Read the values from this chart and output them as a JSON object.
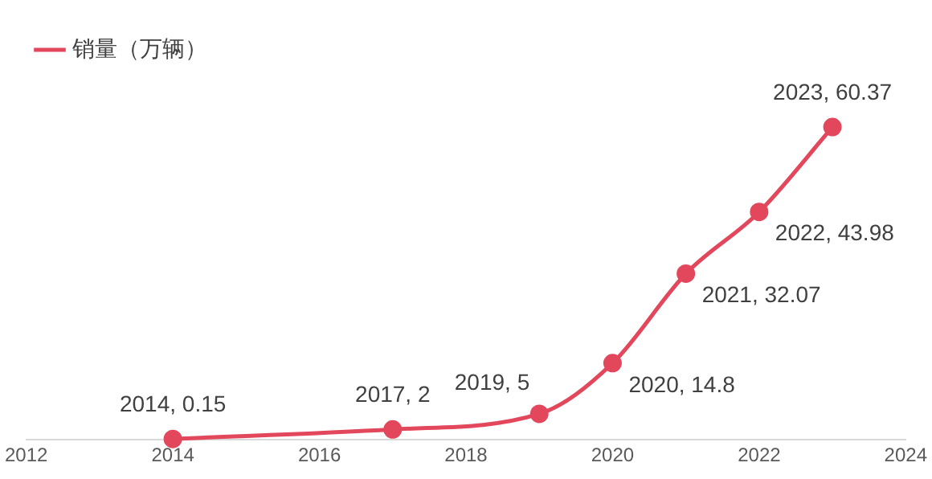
{
  "chart_data": {
    "type": "line",
    "x": [
      2014,
      2017,
      2019,
      2020,
      2021,
      2022,
      2023
    ],
    "series": [
      {
        "name": "销量（万辆）",
        "color": "#e2475c",
        "values": [
          0.15,
          2,
          5,
          14.8,
          32.07,
          43.98,
          60.37
        ],
        "value_labels": [
          "2014, 0.15",
          "2017, 2",
          "2019, 5",
          "2020, 14.8",
          "2021, 32.07",
          "2022, 43.98",
          "2023, 60.37"
        ]
      }
    ],
    "xlim": [
      2012,
      2024
    ],
    "xticks": [
      2012,
      2014,
      2016,
      2018,
      2020,
      2022,
      2024
    ],
    "tick_labels": "x",
    "grid": false,
    "legend": "top left",
    "marker": "circle",
    "line_style": "solid"
  }
}
